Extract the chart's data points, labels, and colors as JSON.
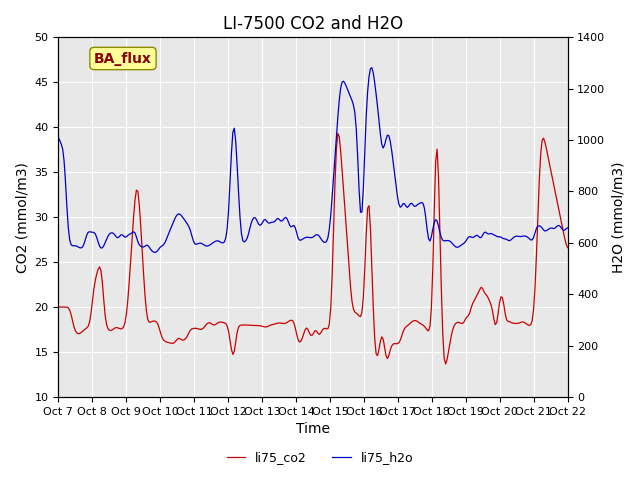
{
  "title": "LI-7500 CO2 and H2O",
  "xlabel": "Time",
  "ylabel_left": "CO2 (mmol/m3)",
  "ylabel_right": "H2O (mmol/m3)",
  "xlim": [
    0,
    360
  ],
  "ylim_left": [
    10,
    50
  ],
  "ylim_right": [
    0,
    1400
  ],
  "xtick_labels": [
    "Oct 7",
    "Oct 8",
    "Oct 9",
    "Oct 10",
    "Oct 11",
    "Oct 12",
    "Oct 13",
    "Oct 14",
    "Oct 15",
    "Oct 16",
    "Oct 17",
    "Oct 18",
    "Oct 19",
    "Oct 20",
    "Oct 21",
    "Oct 22"
  ],
  "annotation_text": "BA_flux",
  "annotation_color": "#8B0000",
  "annotation_bg": "#FFFF99",
  "line_co2_color": "#CC0000",
  "line_h2o_color": "#0000CC",
  "legend_co2": "li75_co2",
  "legend_h2o": "li75_h2o",
  "bg_color": "#E8E8E8",
  "fig_bg": "#FFFFFF",
  "title_fontsize": 12,
  "label_fontsize": 10,
  "tick_fontsize": 8
}
